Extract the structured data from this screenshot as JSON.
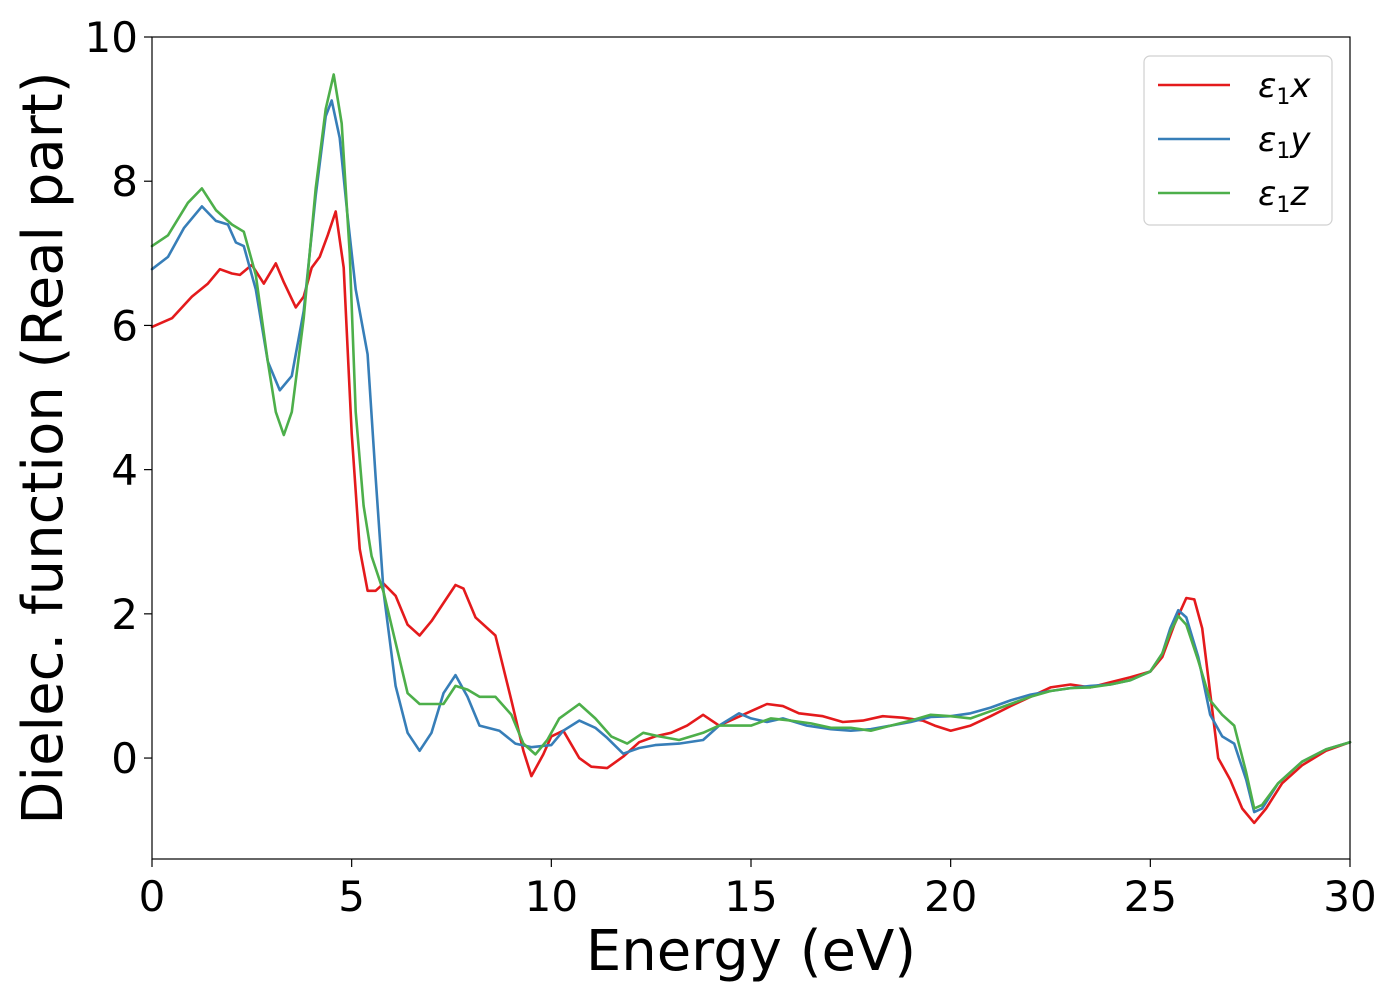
{
  "chart_data": {
    "type": "line",
    "xlabel": "Energy (eV)",
    "ylabel": "Dielec. function (Real part)",
    "xlim": [
      0,
      30
    ],
    "ylim": [
      -1.4,
      10
    ],
    "xticks": [
      0,
      5,
      10,
      15,
      20,
      25,
      30
    ],
    "yticks": [
      0,
      2,
      4,
      6,
      8,
      10
    ],
    "grid": false,
    "legend_position": "top-right",
    "series": [
      {
        "name": "ε1x",
        "legend": {
          "base": "ε",
          "sub": "1",
          "suffix": "x"
        },
        "color": "#e41a1c",
        "points": [
          [
            0,
            5.98
          ],
          [
            0.5,
            6.1
          ],
          [
            1,
            6.4
          ],
          [
            1.4,
            6.58
          ],
          [
            1.7,
            6.78
          ],
          [
            2,
            6.72
          ],
          [
            2.2,
            6.7
          ],
          [
            2.5,
            6.84
          ],
          [
            2.8,
            6.58
          ],
          [
            3.1,
            6.86
          ],
          [
            3.3,
            6.6
          ],
          [
            3.6,
            6.25
          ],
          [
            3.8,
            6.4
          ],
          [
            4,
            6.8
          ],
          [
            4.2,
            6.95
          ],
          [
            4.4,
            7.25
          ],
          [
            4.6,
            7.58
          ],
          [
            4.8,
            6.8
          ],
          [
            5,
            4.5
          ],
          [
            5.2,
            2.9
          ],
          [
            5.4,
            2.32
          ],
          [
            5.6,
            2.32
          ],
          [
            5.8,
            2.42
          ],
          [
            6.1,
            2.25
          ],
          [
            6.4,
            1.85
          ],
          [
            6.7,
            1.7
          ],
          [
            7,
            1.9
          ],
          [
            7.3,
            2.15
          ],
          [
            7.6,
            2.4
          ],
          [
            7.8,
            2.35
          ],
          [
            8.1,
            1.95
          ],
          [
            8.6,
            1.7
          ],
          [
            9,
            0.8
          ],
          [
            9.3,
            0.1
          ],
          [
            9.5,
            -0.25
          ],
          [
            9.8,
            0.05
          ],
          [
            10,
            0.3
          ],
          [
            10.3,
            0.38
          ],
          [
            10.7,
            0.0
          ],
          [
            11,
            -0.12
          ],
          [
            11.4,
            -0.14
          ],
          [
            11.8,
            0.02
          ],
          [
            12.2,
            0.22
          ],
          [
            12.6,
            0.3
          ],
          [
            13,
            0.35
          ],
          [
            13.4,
            0.45
          ],
          [
            13.8,
            0.6
          ],
          [
            14.2,
            0.45
          ],
          [
            14.6,
            0.55
          ],
          [
            15,
            0.65
          ],
          [
            15.4,
            0.75
          ],
          [
            15.8,
            0.72
          ],
          [
            16.2,
            0.62
          ],
          [
            16.8,
            0.58
          ],
          [
            17.3,
            0.5
          ],
          [
            17.8,
            0.52
          ],
          [
            18.3,
            0.58
          ],
          [
            18.8,
            0.56
          ],
          [
            19.3,
            0.52
          ],
          [
            19.6,
            0.45
          ],
          [
            20,
            0.38
          ],
          [
            20.5,
            0.45
          ],
          [
            21,
            0.58
          ],
          [
            21.5,
            0.72
          ],
          [
            22,
            0.85
          ],
          [
            22.5,
            0.98
          ],
          [
            23,
            1.02
          ],
          [
            23.5,
            0.98
          ],
          [
            24,
            1.05
          ],
          [
            24.5,
            1.12
          ],
          [
            25,
            1.2
          ],
          [
            25.3,
            1.4
          ],
          [
            25.6,
            1.85
          ],
          [
            25.9,
            2.22
          ],
          [
            26.1,
            2.2
          ],
          [
            26.3,
            1.8
          ],
          [
            26.5,
            0.9
          ],
          [
            26.7,
            0.0
          ],
          [
            27,
            -0.3
          ],
          [
            27.3,
            -0.7
          ],
          [
            27.6,
            -0.9
          ],
          [
            27.9,
            -0.7
          ],
          [
            28.3,
            -0.35
          ],
          [
            28.8,
            -0.1
          ],
          [
            29.4,
            0.1
          ],
          [
            30,
            0.22
          ]
        ]
      },
      {
        "name": "ε1y",
        "legend": {
          "base": "ε",
          "sub": "1",
          "suffix": "y"
        },
        "color": "#377eb8",
        "points": [
          [
            0,
            6.78
          ],
          [
            0.4,
            6.95
          ],
          [
            0.8,
            7.35
          ],
          [
            1.25,
            7.65
          ],
          [
            1.6,
            7.45
          ],
          [
            1.9,
            7.4
          ],
          [
            2.1,
            7.15
          ],
          [
            2.3,
            7.1
          ],
          [
            2.6,
            6.5
          ],
          [
            2.9,
            5.5
          ],
          [
            3.2,
            5.1
          ],
          [
            3.5,
            5.3
          ],
          [
            3.8,
            6.2
          ],
          [
            4.1,
            7.8
          ],
          [
            4.35,
            8.9
          ],
          [
            4.5,
            9.12
          ],
          [
            4.7,
            8.6
          ],
          [
            4.9,
            7.5
          ],
          [
            5.1,
            6.5
          ],
          [
            5.4,
            5.6
          ],
          [
            5.6,
            3.9
          ],
          [
            5.8,
            2.3
          ],
          [
            6.1,
            1.0
          ],
          [
            6.4,
            0.35
          ],
          [
            6.7,
            0.1
          ],
          [
            7,
            0.35
          ],
          [
            7.3,
            0.9
          ],
          [
            7.6,
            1.15
          ],
          [
            7.9,
            0.85
          ],
          [
            8.2,
            0.45
          ],
          [
            8.7,
            0.38
          ],
          [
            9.1,
            0.2
          ],
          [
            9.5,
            0.15
          ],
          [
            10,
            0.18
          ],
          [
            10.3,
            0.38
          ],
          [
            10.7,
            0.52
          ],
          [
            11.1,
            0.42
          ],
          [
            11.4,
            0.28
          ],
          [
            11.8,
            0.06
          ],
          [
            12.2,
            0.14
          ],
          [
            12.6,
            0.18
          ],
          [
            13.2,
            0.2
          ],
          [
            13.8,
            0.25
          ],
          [
            14.2,
            0.45
          ],
          [
            14.7,
            0.62
          ],
          [
            15,
            0.55
          ],
          [
            15.4,
            0.5
          ],
          [
            15.8,
            0.55
          ],
          [
            16.4,
            0.45
          ],
          [
            17,
            0.4
          ],
          [
            17.5,
            0.38
          ],
          [
            18,
            0.4
          ],
          [
            18.5,
            0.45
          ],
          [
            19,
            0.5
          ],
          [
            19.5,
            0.57
          ],
          [
            20,
            0.58
          ],
          [
            20.5,
            0.62
          ],
          [
            21,
            0.7
          ],
          [
            21.5,
            0.8
          ],
          [
            22,
            0.88
          ],
          [
            22.5,
            0.93
          ],
          [
            23,
            0.97
          ],
          [
            23.5,
            1.0
          ],
          [
            24,
            1.02
          ],
          [
            24.5,
            1.08
          ],
          [
            25,
            1.2
          ],
          [
            25.3,
            1.45
          ],
          [
            25.5,
            1.8
          ],
          [
            25.7,
            2.05
          ],
          [
            25.9,
            1.95
          ],
          [
            26.2,
            1.4
          ],
          [
            26.5,
            0.6
          ],
          [
            26.8,
            0.3
          ],
          [
            27.1,
            0.2
          ],
          [
            27.4,
            -0.3
          ],
          [
            27.6,
            -0.75
          ],
          [
            27.8,
            -0.7
          ],
          [
            28.2,
            -0.35
          ],
          [
            28.8,
            -0.05
          ],
          [
            29.4,
            0.12
          ],
          [
            30,
            0.22
          ]
        ]
      },
      {
        "name": "ε1z",
        "legend": {
          "base": "ε",
          "sub": "1",
          "suffix": "z"
        },
        "color": "#4daf4a",
        "points": [
          [
            0,
            7.1
          ],
          [
            0.4,
            7.25
          ],
          [
            0.9,
            7.7
          ],
          [
            1.25,
            7.9
          ],
          [
            1.6,
            7.6
          ],
          [
            2,
            7.4
          ],
          [
            2.3,
            7.3
          ],
          [
            2.6,
            6.7
          ],
          [
            2.9,
            5.5
          ],
          [
            3.1,
            4.8
          ],
          [
            3.3,
            4.48
          ],
          [
            3.5,
            4.8
          ],
          [
            3.8,
            6.1
          ],
          [
            4.1,
            7.9
          ],
          [
            4.35,
            9.0
          ],
          [
            4.55,
            9.48
          ],
          [
            4.75,
            8.8
          ],
          [
            4.95,
            7.0
          ],
          [
            5.1,
            4.8
          ],
          [
            5.3,
            3.5
          ],
          [
            5.5,
            2.8
          ],
          [
            5.8,
            2.3
          ],
          [
            6.1,
            1.6
          ],
          [
            6.4,
            0.9
          ],
          [
            6.7,
            0.75
          ],
          [
            7,
            0.75
          ],
          [
            7.3,
            0.75
          ],
          [
            7.6,
            1.0
          ],
          [
            7.9,
            0.95
          ],
          [
            8.2,
            0.85
          ],
          [
            8.6,
            0.85
          ],
          [
            9,
            0.6
          ],
          [
            9.3,
            0.2
          ],
          [
            9.6,
            0.05
          ],
          [
            9.9,
            0.25
          ],
          [
            10.2,
            0.55
          ],
          [
            10.7,
            0.75
          ],
          [
            11.1,
            0.55
          ],
          [
            11.5,
            0.3
          ],
          [
            11.9,
            0.2
          ],
          [
            12.3,
            0.35
          ],
          [
            12.7,
            0.3
          ],
          [
            13.2,
            0.25
          ],
          [
            13.8,
            0.35
          ],
          [
            14.2,
            0.45
          ],
          [
            14.6,
            0.45
          ],
          [
            15,
            0.45
          ],
          [
            15.5,
            0.55
          ],
          [
            16,
            0.52
          ],
          [
            16.5,
            0.48
          ],
          [
            17,
            0.42
          ],
          [
            17.5,
            0.42
          ],
          [
            18,
            0.38
          ],
          [
            18.5,
            0.45
          ],
          [
            19,
            0.52
          ],
          [
            19.5,
            0.6
          ],
          [
            20,
            0.58
          ],
          [
            20.5,
            0.55
          ],
          [
            21,
            0.65
          ],
          [
            21.5,
            0.75
          ],
          [
            22,
            0.85
          ],
          [
            22.5,
            0.93
          ],
          [
            23,
            0.97
          ],
          [
            23.5,
            0.98
          ],
          [
            24,
            1.02
          ],
          [
            24.5,
            1.08
          ],
          [
            25,
            1.2
          ],
          [
            25.3,
            1.45
          ],
          [
            25.5,
            1.75
          ],
          [
            25.7,
            1.97
          ],
          [
            25.9,
            1.85
          ],
          [
            26.2,
            1.35
          ],
          [
            26.5,
            0.8
          ],
          [
            26.8,
            0.6
          ],
          [
            27.1,
            0.45
          ],
          [
            27.4,
            -0.2
          ],
          [
            27.6,
            -0.7
          ],
          [
            27.8,
            -0.65
          ],
          [
            28.2,
            -0.35
          ],
          [
            28.8,
            -0.05
          ],
          [
            29.4,
            0.12
          ],
          [
            30,
            0.22
          ]
        ]
      }
    ]
  }
}
